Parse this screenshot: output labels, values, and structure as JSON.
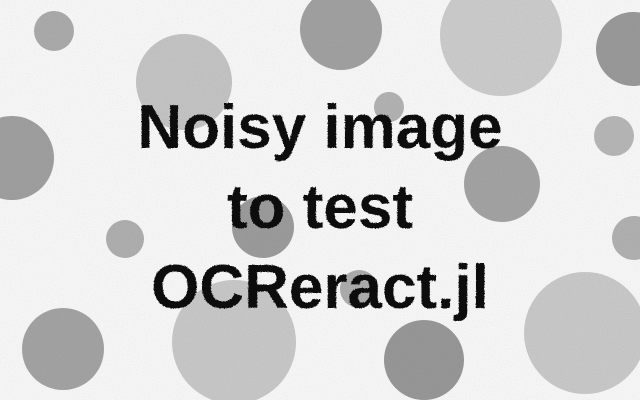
{
  "text_lines": [
    "Noisy image",
    "to test",
    "OCReract.jl"
  ],
  "colors": {
    "background": "#ffffff",
    "text": "#111111",
    "circle_light": "#cfcfcf",
    "circle_mid": "#b4b4b4",
    "circle_dark": "#9a9a9a"
  }
}
